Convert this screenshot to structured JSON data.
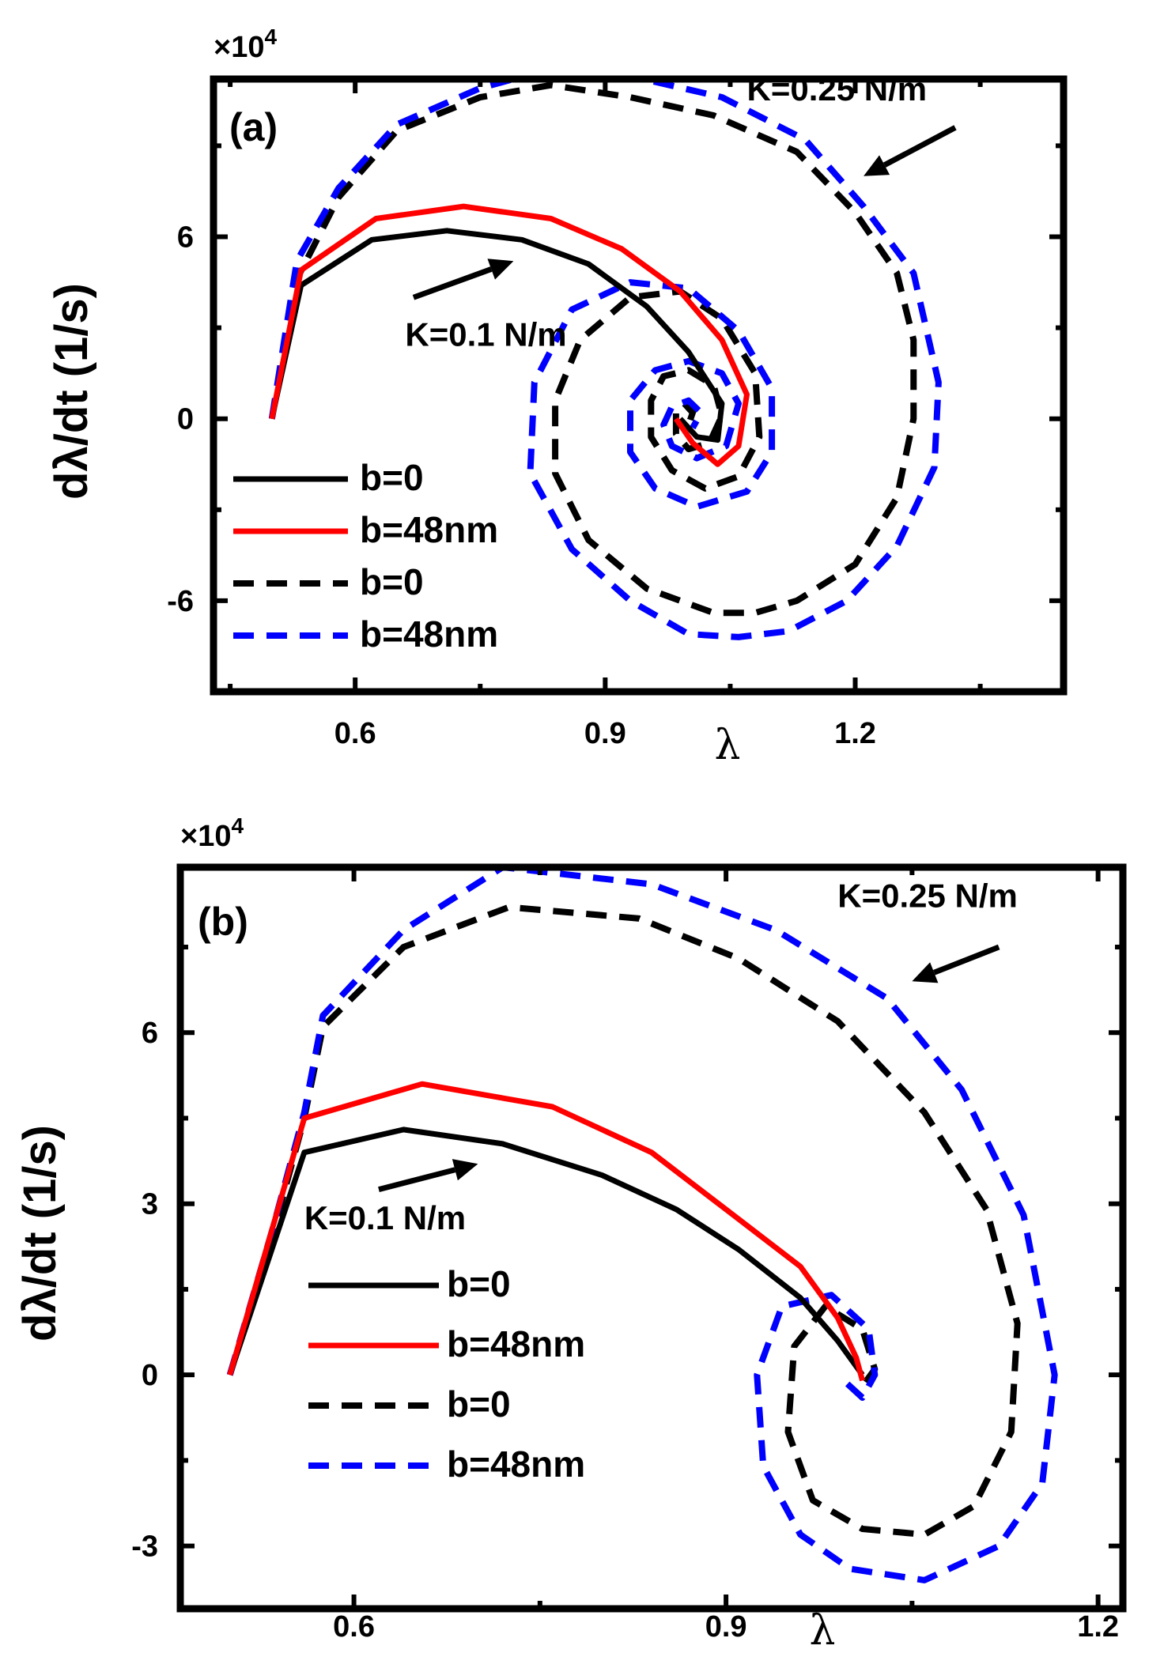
{
  "chart_data": [
    {
      "type": "line",
      "panel_label": "(a)",
      "multiplier": "×10",
      "multiplier_exp": "4",
      "xlabel": "λ",
      "ylabel": "dλ/dt  (1/s)",
      "xlim": [
        0.43,
        1.45
      ],
      "ylim": [
        -9,
        11.2
      ],
      "xticks": [
        0.6,
        0.9,
        1.2
      ],
      "xtick_labels": [
        "0.6",
        "0.9",
        "1.2"
      ],
      "yticks": [
        -6,
        0,
        6
      ],
      "ytick_labels": [
        "-6",
        "0",
        "6"
      ],
      "legend": [
        {
          "label": "b=0",
          "color": "#000000",
          "dash": "solid"
        },
        {
          "label": "b=48nm",
          "color": "#ff0000",
          "dash": "solid"
        },
        {
          "label": "b=0",
          "color": "#000000",
          "dash": "dashed"
        },
        {
          "label": "b=48nm",
          "color": "#0000ff",
          "dash": "dashed"
        }
      ],
      "annotations": [
        {
          "text": "K=0.25 N/m",
          "x": 1.07,
          "y": 10.5,
          "arrow_from": [
            1.32,
            9.6
          ],
          "arrow_to": [
            1.21,
            8.0
          ]
        },
        {
          "text": "K=0.1 N/m",
          "x": 0.66,
          "y": 2.4,
          "arrow_from": [
            0.67,
            4.0
          ],
          "arrow_to": [
            0.79,
            5.2
          ]
        }
      ],
      "series": [
        {
          "color": "#000000",
          "dash": "solid",
          "legend_index": 0,
          "points": [
            [
              0.5,
              0
            ],
            [
              0.535,
              4.4
            ],
            [
              0.62,
              5.9
            ],
            [
              0.71,
              6.2
            ],
            [
              0.8,
              5.9
            ],
            [
              0.88,
              5.1
            ],
            [
              0.95,
              3.7
            ],
            [
              1.0,
              2.2
            ],
            [
              1.04,
              0.5
            ],
            [
              1.035,
              -0.7
            ],
            [
              1.01,
              -0.6
            ],
            [
              0.99,
              0
            ]
          ]
        },
        {
          "color": "#ff0000",
          "dash": "solid",
          "legend_index": 1,
          "points": [
            [
              0.5,
              0
            ],
            [
              0.535,
              4.9
            ],
            [
              0.625,
              6.6
            ],
            [
              0.73,
              7.0
            ],
            [
              0.835,
              6.6
            ],
            [
              0.92,
              5.6
            ],
            [
              0.99,
              4.2
            ],
            [
              1.04,
              2.6
            ],
            [
              1.07,
              0.8
            ],
            [
              1.06,
              -0.9
            ],
            [
              1.035,
              -1.5
            ],
            [
              1.005,
              -0.8
            ],
            [
              0.985,
              0
            ]
          ]
        },
        {
          "color": "#000000",
          "dash": "dashed",
          "legend_index": 2,
          "points": [
            [
              0.5,
              0
            ],
            [
              0.53,
              4.6
            ],
            [
              0.58,
              7.3
            ],
            [
              0.65,
              9.5
            ],
            [
              0.75,
              10.6
            ],
            [
              0.835,
              11.0
            ],
            [
              0.93,
              10.6
            ],
            [
              1.03,
              10.0
            ],
            [
              1.13,
              8.8
            ],
            [
              1.2,
              6.8
            ],
            [
              1.25,
              4.8
            ],
            [
              1.27,
              2.6
            ],
            [
              1.27,
              0
            ],
            [
              1.25,
              -2.6
            ],
            [
              1.2,
              -4.8
            ],
            [
              1.13,
              -6.0
            ],
            [
              1.08,
              -6.4
            ],
            [
              1.03,
              -6.4
            ],
            [
              0.95,
              -5.6
            ],
            [
              0.88,
              -4.0
            ],
            [
              0.84,
              -1.8
            ],
            [
              0.84,
              0.6
            ],
            [
              0.87,
              2.6
            ],
            [
              0.93,
              4.0
            ],
            [
              0.99,
              4.2
            ],
            [
              1.04,
              3.3
            ],
            [
              1.08,
              1.5
            ],
            [
              1.085,
              -0.6
            ],
            [
              1.06,
              -1.9
            ],
            [
              1.02,
              -2.3
            ],
            [
              0.98,
              -1.7
            ],
            [
              0.955,
              -0.6
            ],
            [
              0.955,
              0.6
            ],
            [
              0.97,
              1.4
            ],
            [
              1.0,
              1.6
            ],
            [
              1.03,
              1.1
            ],
            [
              1.04,
              0.1
            ],
            [
              1.025,
              -0.8
            ],
            [
              1.0,
              -1.0
            ],
            [
              0.985,
              -0.5
            ],
            [
              0.985,
              0.2
            ],
            [
              0.995,
              0.5
            ],
            [
              1.005,
              0.2
            ],
            [
              1.0,
              -0.2
            ]
          ]
        },
        {
          "color": "#0000ff",
          "dash": "dashed",
          "legend_index": 3,
          "points": [
            [
              0.5,
              0
            ],
            [
              0.53,
              5.2
            ],
            [
              0.58,
              7.6
            ],
            [
              0.65,
              9.7
            ],
            [
              0.75,
              10.9
            ],
            [
              0.83,
              11.5
            ],
            [
              0.93,
              11.3
            ],
            [
              1.04,
              10.6
            ],
            [
              1.14,
              9.2
            ],
            [
              1.21,
              7.0
            ],
            [
              1.27,
              4.8
            ],
            [
              1.3,
              1.2
            ],
            [
              1.295,
              -1.6
            ],
            [
              1.25,
              -4.2
            ],
            [
              1.19,
              -6.0
            ],
            [
              1.12,
              -7.0
            ],
            [
              1.06,
              -7.2
            ],
            [
              1.0,
              -7.1
            ],
            [
              0.93,
              -6.0
            ],
            [
              0.86,
              -4.3
            ],
            [
              0.81,
              -1.8
            ],
            [
              0.815,
              1.2
            ],
            [
              0.86,
              3.6
            ],
            [
              0.93,
              4.5
            ],
            [
              1.0,
              4.3
            ],
            [
              1.06,
              2.9
            ],
            [
              1.1,
              1.0
            ],
            [
              1.1,
              -1.1
            ],
            [
              1.07,
              -2.4
            ],
            [
              1.01,
              -2.9
            ],
            [
              0.96,
              -2.3
            ],
            [
              0.93,
              -1.1
            ],
            [
              0.93,
              0.6
            ],
            [
              0.96,
              1.6
            ],
            [
              1.0,
              1.9
            ],
            [
              1.04,
              1.5
            ],
            [
              1.06,
              0.5
            ],
            [
              1.045,
              -0.9
            ],
            [
              1.01,
              -1.3
            ],
            [
              0.98,
              -0.9
            ],
            [
              0.97,
              -0.2
            ],
            [
              0.98,
              0.4
            ],
            [
              1.0,
              0.6
            ],
            [
              1.015,
              0.2
            ],
            [
              1.005,
              -0.3
            ]
          ]
        }
      ]
    },
    {
      "type": "line",
      "panel_label": "(b)",
      "multiplier": "×10",
      "multiplier_exp": "4",
      "xlabel": "λ",
      "ylabel": "dλ/dt (1/s)",
      "xlim": [
        0.46,
        1.22
      ],
      "ylim": [
        -4.1,
        8.9
      ],
      "xticks": [
        0.6,
        0.9,
        1.2
      ],
      "xtick_labels": [
        "0.6",
        "0.9",
        "1.2"
      ],
      "yticks": [
        -3,
        0,
        3,
        6
      ],
      "ytick_labels": [
        "-3",
        "0",
        "3",
        "6"
      ],
      "legend": [
        {
          "label": "b=0",
          "color": "#000000",
          "dash": "solid"
        },
        {
          "label": "b=48nm",
          "color": "#ff0000",
          "dash": "solid"
        },
        {
          "label": "b=0",
          "color": "#000000",
          "dash": "dashed"
        },
        {
          "label": "b=48nm",
          "color": "#0000ff",
          "dash": "dashed"
        }
      ],
      "annotations": [
        {
          "text": "K=0.25 N/m",
          "x": 0.99,
          "y": 8.2,
          "arrow_from": [
            1.12,
            7.5
          ],
          "arrow_to": [
            1.05,
            6.9
          ]
        },
        {
          "text": "K=0.1 N/m",
          "x": 0.56,
          "y": 2.55,
          "arrow_from": [
            0.62,
            3.25
          ],
          "arrow_to": [
            0.7,
            3.7
          ]
        }
      ],
      "series": [
        {
          "color": "#000000",
          "dash": "solid",
          "legend_index": 0,
          "points": [
            [
              0.5,
              0
            ],
            [
              0.56,
              3.9
            ],
            [
              0.64,
              4.3
            ],
            [
              0.72,
              4.05
            ],
            [
              0.8,
              3.5
            ],
            [
              0.86,
              2.9
            ],
            [
              0.91,
              2.2
            ],
            [
              0.96,
              1.35
            ],
            [
              0.99,
              0.6
            ],
            [
              1.01,
              0
            ]
          ]
        },
        {
          "color": "#ff0000",
          "dash": "solid",
          "legend_index": 1,
          "points": [
            [
              0.5,
              0
            ],
            [
              0.56,
              4.5
            ],
            [
              0.655,
              5.1
            ],
            [
              0.76,
              4.7
            ],
            [
              0.84,
              3.9
            ],
            [
              0.9,
              2.9
            ],
            [
              0.96,
              1.9
            ],
            [
              0.99,
              1.0
            ],
            [
              1.005,
              0.3
            ],
            [
              1.01,
              -0.1
            ]
          ]
        },
        {
          "color": "#000000",
          "dash": "dashed",
          "legend_index": 2,
          "points": [
            [
              0.5,
              0
            ],
            [
              0.535,
              2.5
            ],
            [
              0.56,
              4.5
            ],
            [
              0.575,
              6.1
            ],
            [
              0.64,
              7.5
            ],
            [
              0.725,
              8.2
            ],
            [
              0.83,
              8.0
            ],
            [
              0.91,
              7.3
            ],
            [
              0.99,
              6.2
            ],
            [
              1.06,
              4.6
            ],
            [
              1.11,
              2.9
            ],
            [
              1.135,
              0.9
            ],
            [
              1.13,
              -1.0
            ],
            [
              1.1,
              -2.3
            ],
            [
              1.06,
              -2.8
            ],
            [
              1.01,
              -2.7
            ],
            [
              0.97,
              -2.2
            ],
            [
              0.95,
              -1.0
            ],
            [
              0.955,
              0.5
            ],
            [
              0.98,
              1.2
            ],
            [
              1.01,
              0.8
            ],
            [
              1.02,
              0.1
            ],
            [
              1.01,
              -0.2
            ]
          ]
        },
        {
          "color": "#0000ff",
          "dash": "dashed",
          "legend_index": 3,
          "points": [
            [
              0.5,
              0
            ],
            [
              0.535,
              2.6
            ],
            [
              0.56,
              4.6
            ],
            [
              0.575,
              6.3
            ],
            [
              0.64,
              7.8
            ],
            [
              0.72,
              8.9
            ],
            [
              0.84,
              8.6
            ],
            [
              0.94,
              7.8
            ],
            [
              1.03,
              6.6
            ],
            [
              1.09,
              5.0
            ],
            [
              1.14,
              2.8
            ],
            [
              1.165,
              0
            ],
            [
              1.155,
              -1.9
            ],
            [
              1.12,
              -3.0
            ],
            [
              1.06,
              -3.6
            ],
            [
              1.0,
              -3.4
            ],
            [
              0.96,
              -2.8
            ],
            [
              0.93,
              -1.6
            ],
            [
              0.925,
              0
            ],
            [
              0.945,
              1.2
            ],
            [
              0.985,
              1.4
            ],
            [
              1.015,
              0.8
            ],
            [
              1.02,
              0
            ],
            [
              1.01,
              -0.4
            ],
            [
              0.995,
              -0.1
            ]
          ]
        }
      ]
    }
  ]
}
